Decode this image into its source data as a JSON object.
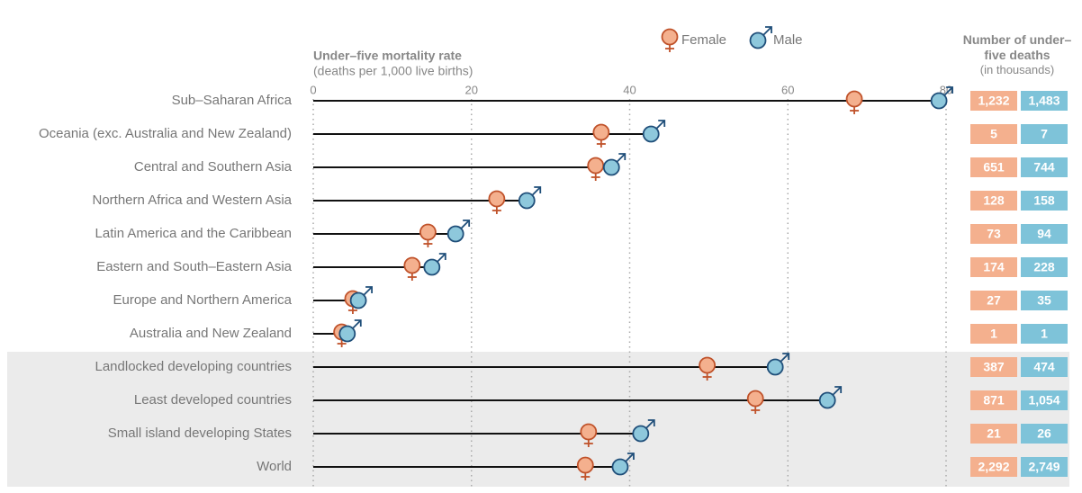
{
  "chart_data": {
    "type": "dot",
    "x_label": "Under–five mortality rate",
    "x_sublabel": "(deaths per 1,000 live births)",
    "xlim": [
      0,
      80
    ],
    "xticks": [
      0,
      20,
      40,
      60,
      80
    ],
    "grid": true,
    "legend": "top",
    "categories": [
      "Sub–Saharan Africa",
      "Oceania (exc. Australia and New Zealand)",
      "Central and Southern Asia",
      "Northern Africa and Western Asia",
      "Latin America and the Caribbean",
      "Eastern and South–Eastern Asia",
      "Europe and Northern America",
      "Australia and New Zealand",
      "Landlocked developing countries",
      "Least developed countries",
      "Small island developing States",
      "World"
    ],
    "series": [
      {
        "name": "Female",
        "color": "#f4b08e",
        "stroke": "#c0522a",
        "values": [
          68.4,
          36.4,
          35.7,
          23.2,
          14.5,
          12.5,
          5.0,
          3.6,
          49.8,
          55.9,
          34.8,
          34.4
        ]
      },
      {
        "name": "Male",
        "color": "#8ec8dc",
        "stroke": "#1f4e79",
        "values": [
          79.1,
          42.7,
          37.7,
          27.0,
          18.0,
          15.0,
          5.7,
          4.3,
          58.4,
          65.0,
          41.4,
          38.8
        ]
      }
    ],
    "deaths": {
      "title": "Number of under–five deaths",
      "subtitle": "(in thousands)",
      "series": [
        {
          "name": "Female",
          "color": "#f4b08e",
          "values": [
            1232,
            5,
            651,
            128,
            73,
            174,
            27,
            1,
            387,
            871,
            21,
            2292
          ],
          "value_labels": [
            "1,232",
            "5",
            "651",
            "128",
            "73",
            "174",
            "27",
            "1",
            "387",
            "871",
            "21",
            "2,292"
          ]
        },
        {
          "name": "Male",
          "color": "#7ec3d9",
          "values": [
            1483,
            7,
            744,
            158,
            94,
            228,
            35,
            1,
            474,
            1054,
            26,
            2749
          ],
          "value_labels": [
            "1,483",
            "7",
            "744",
            "158",
            "94",
            "228",
            "35",
            "1",
            "474",
            "1,054",
            "26",
            "2,749"
          ]
        }
      ]
    }
  }
}
